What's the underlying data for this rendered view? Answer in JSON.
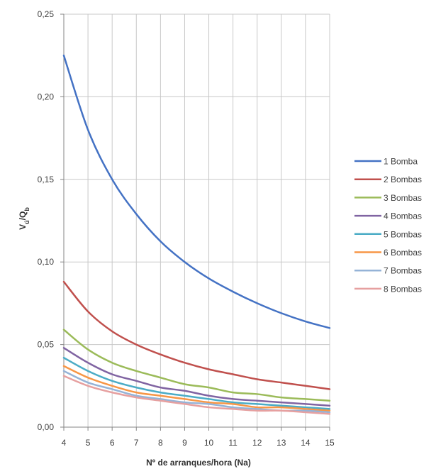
{
  "chart_data": {
    "type": "line",
    "title": "",
    "xlabel": "Nº de arranques/hora (Na)",
    "ylabel": {
      "main": "V",
      "sub1": "ú",
      "mid": "/Q",
      "sub2": "b"
    },
    "x": [
      4,
      5,
      6,
      7,
      8,
      9,
      10,
      11,
      12,
      13,
      14,
      15
    ],
    "xlim": [
      4,
      15
    ],
    "ylim": [
      0,
      0.25
    ],
    "x_ticks": [
      "4",
      "5",
      "6",
      "7",
      "8",
      "9",
      "10",
      "11",
      "12",
      "13",
      "14",
      "15"
    ],
    "y_ticks": [
      {
        "value": 0,
        "label": "0,00"
      },
      {
        "value": 0.05,
        "label": "0,05"
      },
      {
        "value": 0.1,
        "label": "0,10"
      },
      {
        "value": 0.15,
        "label": "0,15"
      },
      {
        "value": 0.2,
        "label": "0,20"
      },
      {
        "value": 0.25,
        "label": "0,25"
      }
    ],
    "grid": true,
    "legend_position": "right",
    "series": [
      {
        "name": "1 Bomba",
        "color": "#4472C4",
        "values": [
          0.225,
          0.18,
          0.15,
          0.129,
          0.1125,
          0.1,
          0.09,
          0.082,
          0.075,
          0.069,
          0.064,
          0.06
        ]
      },
      {
        "name": "2 Bombas",
        "color": "#C0504D",
        "values": [
          0.088,
          0.07,
          0.058,
          0.05,
          0.044,
          0.039,
          0.035,
          0.032,
          0.029,
          0.027,
          0.025,
          0.023
        ]
      },
      {
        "name": "3 Bombas",
        "color": "#9BBB59",
        "values": [
          0.059,
          0.047,
          0.039,
          0.034,
          0.03,
          0.026,
          0.024,
          0.021,
          0.02,
          0.018,
          0.017,
          0.016
        ]
      },
      {
        "name": "4 Bombas",
        "color": "#8064A2",
        "values": [
          0.048,
          0.039,
          0.032,
          0.028,
          0.024,
          0.022,
          0.019,
          0.017,
          0.016,
          0.015,
          0.014,
          0.013
        ]
      },
      {
        "name": "5 Bombas",
        "color": "#4BACC6",
        "values": [
          0.042,
          0.034,
          0.028,
          0.024,
          0.021,
          0.019,
          0.017,
          0.015,
          0.014,
          0.013,
          0.012,
          0.011
        ]
      },
      {
        "name": "6 Bombas",
        "color": "#F79646",
        "values": [
          0.037,
          0.03,
          0.025,
          0.021,
          0.019,
          0.017,
          0.015,
          0.014,
          0.012,
          0.012,
          0.011,
          0.01
        ]
      },
      {
        "name": "7 Bombas",
        "color": "#95B3D7",
        "values": [
          0.034,
          0.027,
          0.023,
          0.019,
          0.017,
          0.015,
          0.014,
          0.012,
          0.011,
          0.01,
          0.01,
          0.009
        ]
      },
      {
        "name": "8 Bombas",
        "color": "#E6A0A0",
        "values": [
          0.031,
          0.025,
          0.021,
          0.018,
          0.016,
          0.014,
          0.012,
          0.011,
          0.01,
          0.01,
          0.009,
          0.008
        ]
      }
    ]
  }
}
